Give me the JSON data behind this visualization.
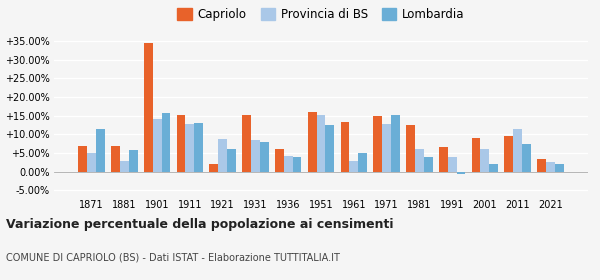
{
  "years": [
    1871,
    1881,
    1901,
    1911,
    1921,
    1931,
    1936,
    1951,
    1961,
    1971,
    1981,
    1991,
    2001,
    2011,
    2021
  ],
  "capriolo": [
    7.0,
    7.0,
    34.5,
    15.2,
    2.0,
    15.2,
    6.0,
    16.0,
    13.3,
    14.8,
    12.5,
    6.7,
    9.0,
    9.5,
    3.5
  ],
  "provincia_bs": [
    5.0,
    3.0,
    14.0,
    12.8,
    8.8,
    8.5,
    4.3,
    15.2,
    3.0,
    12.8,
    6.2,
    4.0,
    6.0,
    11.5,
    2.5
  ],
  "lombardia": [
    11.5,
    5.8,
    15.8,
    13.1,
    6.0,
    8.0,
    4.0,
    12.5,
    5.0,
    15.3,
    4.0,
    -0.5,
    2.0,
    7.5,
    2.2
  ],
  "color_capriolo": "#e8622a",
  "color_provincia": "#aac8e8",
  "color_lombardia": "#6aaed6",
  "title": "Variazione percentuale della popolazione ai censimenti",
  "subtitle": "COMUNE DI CAPRIOLO (BS) - Dati ISTAT - Elaborazione TUTTITALIA.IT",
  "yticks": [
    -5,
    0,
    5,
    10,
    15,
    20,
    25,
    30,
    35
  ],
  "ylim": [
    -6.5,
    37
  ],
  "background_color": "#f5f5f5"
}
